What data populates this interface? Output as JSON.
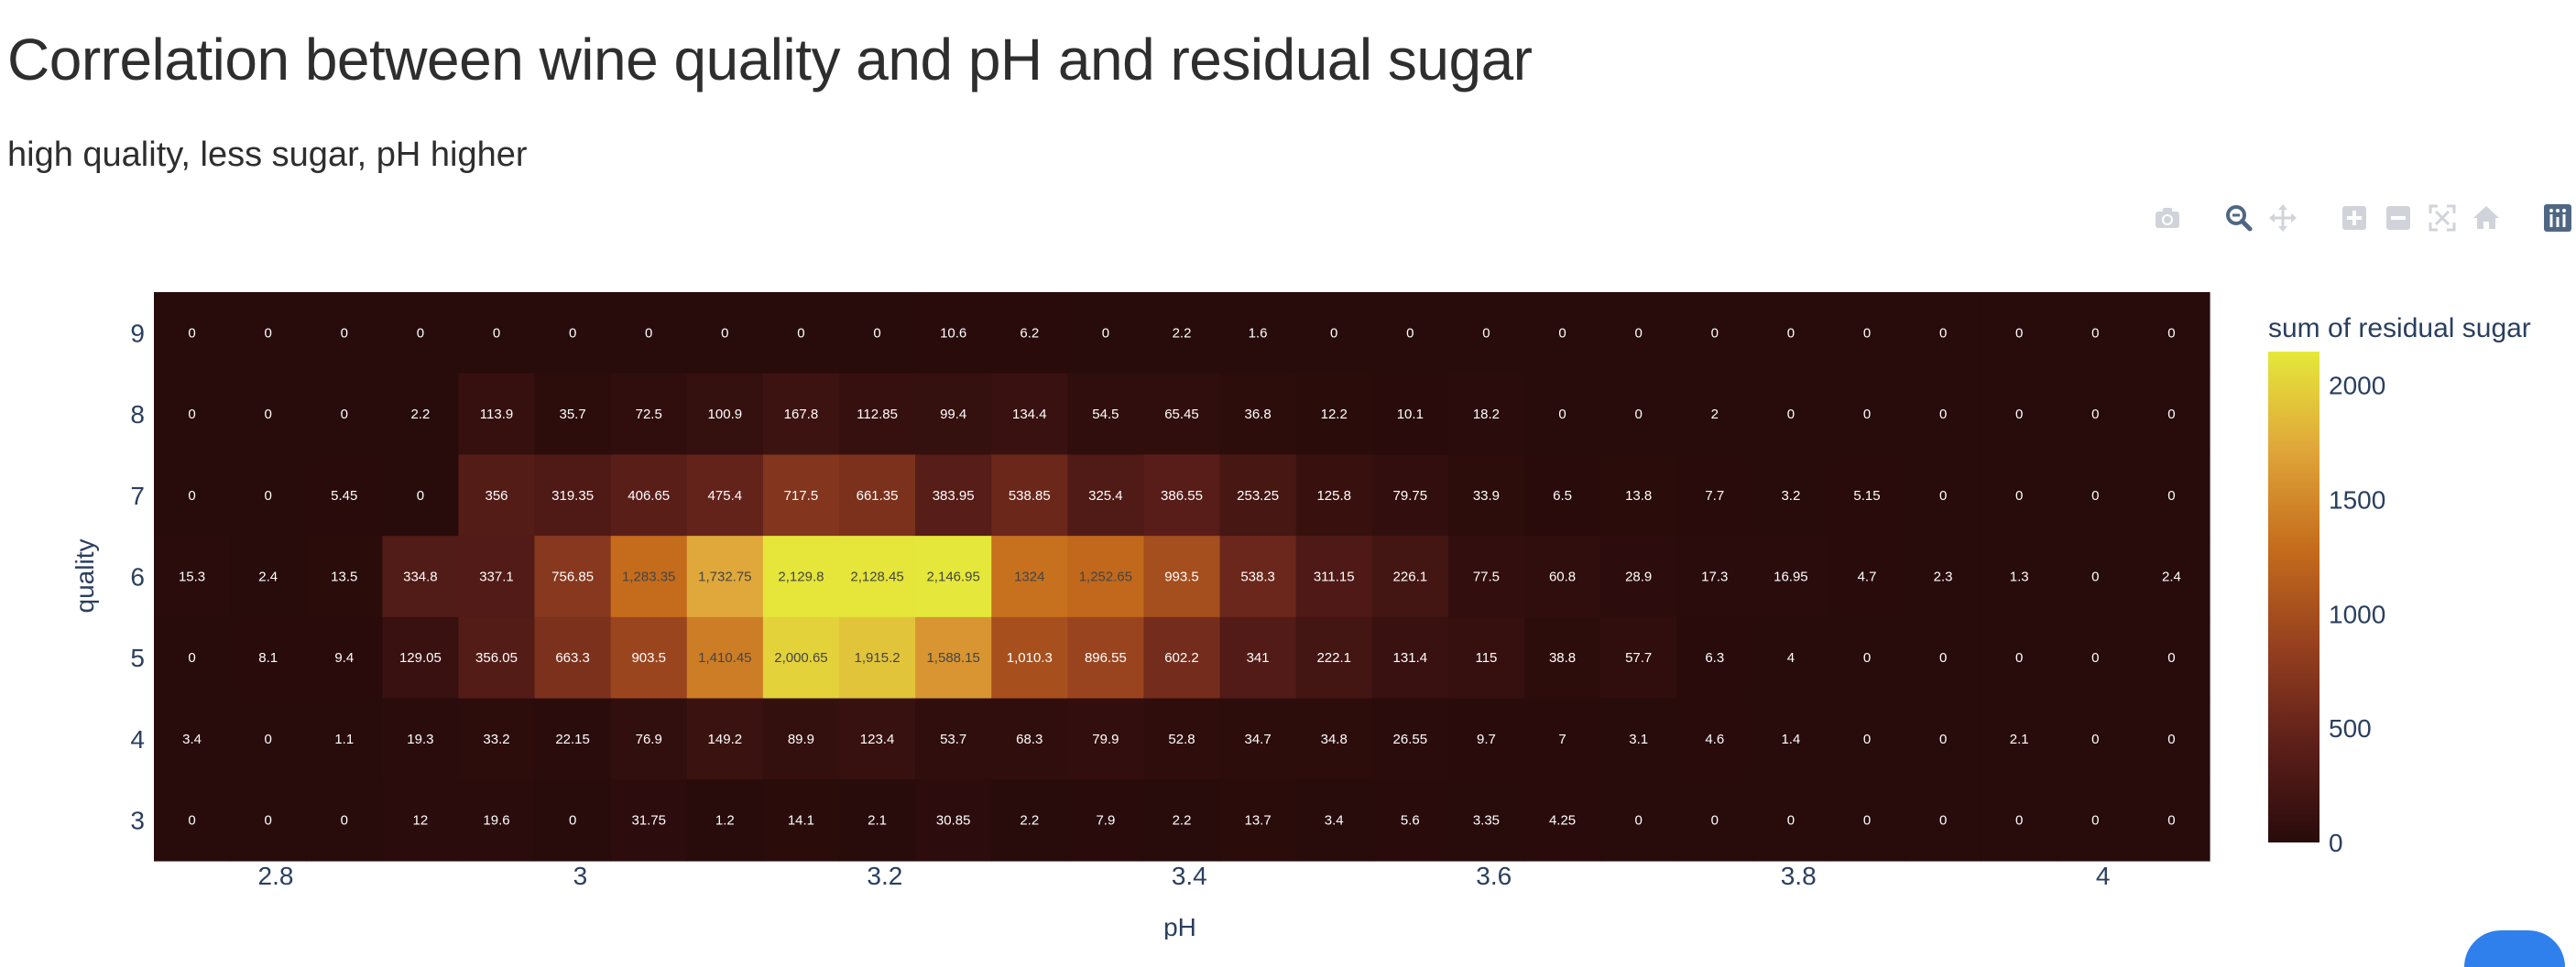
{
  "title": "Correlation between wine quality and pH and residual sugar",
  "subtitle": "high quality, less sugar, pH higher",
  "modebar": {
    "icons": [
      "camera-icon",
      "zoom-icon",
      "pan-icon",
      "zoom-in-icon",
      "zoom-out-icon",
      "autoscale-icon",
      "home-icon",
      "plotly-logo-icon"
    ]
  },
  "colors": {
    "scale": [
      "#280b0b",
      "#5d1f1a",
      "#96401f",
      "#c56c1c",
      "#e0a63a",
      "#e5e83a"
    ],
    "axis_text": "#2a3f5f",
    "active_icon": "#506784",
    "inactive_icon": "#d0d4da"
  },
  "chart_data": {
    "type": "heatmap",
    "xlabel": "pH",
    "ylabel": "quality",
    "colorbar_title": "sum of residual sugar",
    "x_range": [
      2.72,
      4.07
    ],
    "x_bin_start": 2.72,
    "x_bin_width": 0.05,
    "x_ticks": [
      2.8,
      3,
      3.2,
      3.4,
      3.6,
      3.8,
      4
    ],
    "x_tick_labels": [
      "2.8",
      "3",
      "3.2",
      "3.4",
      "3.6",
      "3.8",
      "4"
    ],
    "y_categories": [
      3,
      4,
      5,
      6,
      7,
      8,
      9
    ],
    "y_tick_labels": [
      "3",
      "4",
      "5",
      "6",
      "7",
      "8",
      "9"
    ],
    "z_min": 0,
    "z_max": 2146.95,
    "colorbar_ticks": [
      0,
      500,
      1000,
      1500,
      2000
    ],
    "colorbar_tick_labels": [
      "0",
      "500",
      "1000",
      "1500",
      "2000"
    ],
    "rows": [
      {
        "quality": 9,
        "values": [
          0,
          0,
          0,
          0,
          0,
          0,
          0,
          0,
          0,
          0,
          10.6,
          6.2,
          0,
          2.2,
          1.6,
          0,
          0,
          0,
          0,
          0,
          0,
          0,
          0,
          0,
          0,
          0,
          0
        ],
        "labels": [
          "0",
          "0",
          "0",
          "0",
          "0",
          "0",
          "0",
          "0",
          "0",
          "0",
          "10.6",
          "6.2",
          "0",
          "2.2",
          "1.6",
          "0",
          "0",
          "0",
          "0",
          "0",
          "0",
          "0",
          "0",
          "0",
          "0",
          "0",
          "0"
        ]
      },
      {
        "quality": 8,
        "values": [
          0,
          0,
          0,
          2.2,
          113.9,
          35.7,
          72.5,
          100.9,
          167.8,
          112.85,
          99.4,
          134.4,
          54.5,
          65.45,
          36.8,
          12.2,
          10.1,
          18.2,
          0,
          0,
          2,
          0,
          0,
          0,
          0,
          0,
          0
        ],
        "labels": [
          "0",
          "0",
          "0",
          "2.2",
          "113.9",
          "35.7",
          "72.5",
          "100.9",
          "167.8",
          "112.85",
          "99.4",
          "134.4",
          "54.5",
          "65.45",
          "36.8",
          "12.2",
          "10.1",
          "18.2",
          "0",
          "0",
          "2",
          "0",
          "0",
          "0",
          "0",
          "0",
          "0"
        ]
      },
      {
        "quality": 7,
        "values": [
          0,
          0,
          5.45,
          0,
          356,
          319.35,
          406.65,
          475.4,
          717.5,
          661.35,
          383.95,
          538.85,
          325.4,
          386.55,
          253.25,
          125.8,
          79.75,
          33.9,
          6.5,
          13.8,
          7.7,
          3.2,
          5.15,
          0,
          0,
          0,
          0
        ],
        "labels": [
          "0",
          "0",
          "5.45",
          "0",
          "356",
          "319.35",
          "406.65",
          "475.4",
          "717.5",
          "661.35",
          "383.95",
          "538.85",
          "325.4",
          "386.55",
          "253.25",
          "125.8",
          "79.75",
          "33.9",
          "6.5",
          "13.8",
          "7.7",
          "3.2",
          "5.15",
          "0",
          "0",
          "0",
          "0"
        ]
      },
      {
        "quality": 6,
        "values": [
          15.3,
          2.4,
          13.5,
          334.8,
          337.1,
          756.85,
          1283.35,
          1732.75,
          2129.8,
          2128.45,
          2146.95,
          1324,
          1252.65,
          993.5,
          538.3,
          311.15,
          226.1,
          77.5,
          60.8,
          28.9,
          17.3,
          16.95,
          4.7,
          2.3,
          1.3,
          0,
          2.4
        ],
        "labels": [
          "15.3",
          "2.4",
          "13.5",
          "334.8",
          "337.1",
          "756.85",
          "1,283.35",
          "1,732.75",
          "2,129.8",
          "2,128.45",
          "2,146.95",
          "1324",
          "1,252.65",
          "993.5",
          "538.3",
          "311.15",
          "226.1",
          "77.5",
          "60.8",
          "28.9",
          "17.3",
          "16.95",
          "4.7",
          "2.3",
          "1.3",
          "0",
          "2.4"
        ]
      },
      {
        "quality": 5,
        "values": [
          0,
          8.1,
          9.4,
          129.05,
          356.05,
          663.3,
          903.5,
          1410.45,
          2000.65,
          1915.2,
          1588.15,
          1010.3,
          896.55,
          602.2,
          341,
          222.1,
          131.4,
          115,
          38.8,
          57.7,
          6.3,
          4,
          0,
          0,
          0,
          0,
          0
        ],
        "labels": [
          "0",
          "8.1",
          "9.4",
          "129.05",
          "356.05",
          "663.3",
          "903.5",
          "1,410.45",
          "2,000.65",
          "1,915.2",
          "1,588.15",
          "1,010.3",
          "896.55",
          "602.2",
          "341",
          "222.1",
          "131.4",
          "115",
          "38.8",
          "57.7",
          "6.3",
          "4",
          "0",
          "0",
          "0",
          "0",
          "0"
        ]
      },
      {
        "quality": 4,
        "values": [
          3.4,
          0,
          1.1,
          19.3,
          33.2,
          22.15,
          76.9,
          149.2,
          89.9,
          123.4,
          53.7,
          68.3,
          79.9,
          52.8,
          34.7,
          34.8,
          26.55,
          9.7,
          7,
          3.1,
          4.6,
          1.4,
          0,
          0,
          2.1,
          0,
          0
        ],
        "labels": [
          "3.4",
          "0",
          "1.1",
          "19.3",
          "33.2",
          "22.15",
          "76.9",
          "149.2",
          "89.9",
          "123.4",
          "53.7",
          "68.3",
          "79.9",
          "52.8",
          "34.7",
          "34.8",
          "26.55",
          "9.7",
          "7",
          "3.1",
          "4.6",
          "1.4",
          "0",
          "0",
          "2.1",
          "0",
          "0"
        ]
      },
      {
        "quality": 3,
        "values": [
          0,
          0,
          0,
          12,
          19.6,
          0,
          31.75,
          1.2,
          14.1,
          2.1,
          30.85,
          2.2,
          7.9,
          2.2,
          13.7,
          3.4,
          5.6,
          3.35,
          4.25,
          0,
          0,
          0,
          0,
          0,
          0,
          0,
          0
        ],
        "labels": [
          "0",
          "0",
          "0",
          "12",
          "19.6",
          "0",
          "31.75",
          "1.2",
          "14.1",
          "2.1",
          "30.85",
          "2.2",
          "7.9",
          "2.2",
          "13.7",
          "3.4",
          "5.6",
          "3.35",
          "4.25",
          "0",
          "0",
          "0",
          "0",
          "0",
          "0",
          "0",
          "0"
        ]
      }
    ]
  }
}
